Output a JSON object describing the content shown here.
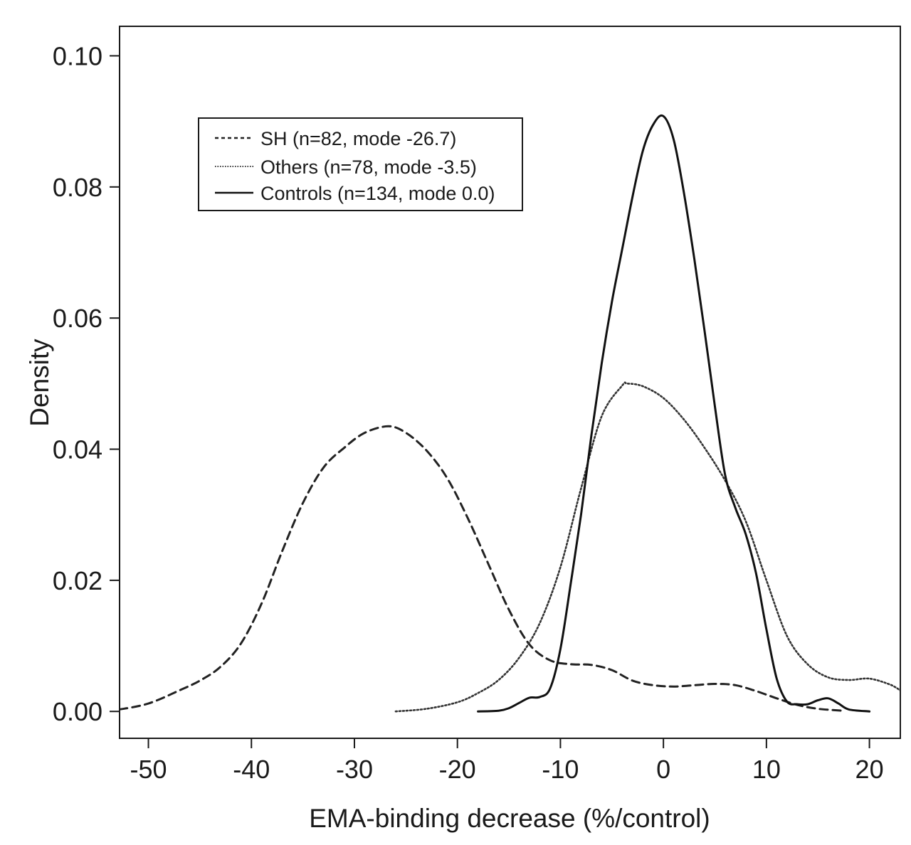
{
  "chart_data": {
    "type": "line",
    "title": "",
    "xlabel": "EMA-binding decrease (%/control)",
    "ylabel": "Density",
    "xlim": [
      -52.8,
      23.0
    ],
    "ylim": [
      -0.0041,
      0.1045
    ],
    "grid": false,
    "legend_position": "top-left",
    "x_ticks": [
      -50,
      -40,
      -30,
      -20,
      -10,
      0,
      10,
      20
    ],
    "x_tick_labels": [
      "-50",
      "-40",
      "-30",
      "-20",
      "-10",
      "0",
      "10",
      "20"
    ],
    "y_ticks": [
      0.0,
      0.02,
      0.04,
      0.06,
      0.08,
      0.1
    ],
    "y_tick_labels": [
      "0.00",
      "0.02",
      "0.04",
      "0.06",
      "0.08",
      "0.10"
    ],
    "series": [
      {
        "name": "SH (n=82, mode -26.7)",
        "line_style": "dashed",
        "color": "#222222",
        "points": [
          [
            -52.8,
            0.0003
          ],
          [
            -50,
            0.0012
          ],
          [
            -47,
            0.0032
          ],
          [
            -45,
            0.0047
          ],
          [
            -43,
            0.0068
          ],
          [
            -41,
            0.0104
          ],
          [
            -39,
            0.0165
          ],
          [
            -37,
            0.0245
          ],
          [
            -35,
            0.0318
          ],
          [
            -33,
            0.0372
          ],
          [
            -31,
            0.0402
          ],
          [
            -29,
            0.0425
          ],
          [
            -26.7,
            0.0435
          ],
          [
            -25,
            0.0425
          ],
          [
            -23,
            0.0398
          ],
          [
            -21,
            0.0356
          ],
          [
            -19,
            0.0295
          ],
          [
            -17,
            0.0225
          ],
          [
            -15,
            0.0155
          ],
          [
            -13,
            0.0102
          ],
          [
            -11,
            0.0078
          ],
          [
            -9,
            0.0072
          ],
          [
            -7,
            0.0071
          ],
          [
            -5,
            0.0063
          ],
          [
            -3,
            0.0047
          ],
          [
            -1,
            0.004
          ],
          [
            1,
            0.0038
          ],
          [
            3,
            0.004
          ],
          [
            5,
            0.0042
          ],
          [
            7,
            0.004
          ],
          [
            9,
            0.0031
          ],
          [
            11,
            0.002
          ],
          [
            13,
            0.001
          ],
          [
            15,
            0.0004
          ],
          [
            17.5,
            0.0001
          ]
        ]
      },
      {
        "name": "Others (n=78, mode -3.5)",
        "line_style": "dotted",
        "color": "#333333",
        "points": [
          [
            -26,
            0.0
          ],
          [
            -23,
            0.0004
          ],
          [
            -20,
            0.0014
          ],
          [
            -18,
            0.0028
          ],
          [
            -16,
            0.0048
          ],
          [
            -14,
            0.0082
          ],
          [
            -12,
            0.0135
          ],
          [
            -10,
            0.022
          ],
          [
            -8,
            0.034
          ],
          [
            -6,
            0.045
          ],
          [
            -4,
            0.0497
          ],
          [
            -3.5,
            0.05
          ],
          [
            -2,
            0.0496
          ],
          [
            0,
            0.0478
          ],
          [
            2,
            0.0445
          ],
          [
            4,
            0.0402
          ],
          [
            6,
            0.0352
          ],
          [
            8,
            0.029
          ],
          [
            10,
            0.02
          ],
          [
            12,
            0.0115
          ],
          [
            14,
            0.0072
          ],
          [
            16,
            0.0052
          ],
          [
            18,
            0.0048
          ],
          [
            20,
            0.005
          ],
          [
            22,
            0.0041
          ],
          [
            23,
            0.0032
          ]
        ]
      },
      {
        "name": "Controls (n=134, mode 0.0)",
        "line_style": "solid",
        "color": "#111111",
        "points": [
          [
            -18,
            0.0
          ],
          [
            -16,
            0.0001
          ],
          [
            -15,
            0.0005
          ],
          [
            -14,
            0.0013
          ],
          [
            -13,
            0.0021
          ],
          [
            -12,
            0.0022
          ],
          [
            -11,
            0.0035
          ],
          [
            -10,
            0.0095
          ],
          [
            -9,
            0.0195
          ],
          [
            -8,
            0.03
          ],
          [
            -7,
            0.042
          ],
          [
            -6,
            0.053
          ],
          [
            -5,
            0.0625
          ],
          [
            -4,
            0.0705
          ],
          [
            -3,
            0.0785
          ],
          [
            -2,
            0.0855
          ],
          [
            -1,
            0.0895
          ],
          [
            0,
            0.0908
          ],
          [
            1,
            0.0872
          ],
          [
            2,
            0.079
          ],
          [
            3,
            0.069
          ],
          [
            4,
            0.058
          ],
          [
            5,
            0.0465
          ],
          [
            6,
            0.036
          ],
          [
            7,
            0.031
          ],
          [
            8,
            0.027
          ],
          [
            9,
            0.021
          ],
          [
            10,
            0.0125
          ],
          [
            11,
            0.005
          ],
          [
            12,
            0.0015
          ],
          [
            13,
            0.0011
          ],
          [
            14,
            0.0011
          ],
          [
            15,
            0.0017
          ],
          [
            16,
            0.002
          ],
          [
            17,
            0.0012
          ],
          [
            18,
            0.0003
          ],
          [
            20,
            0.0
          ]
        ]
      }
    ]
  }
}
